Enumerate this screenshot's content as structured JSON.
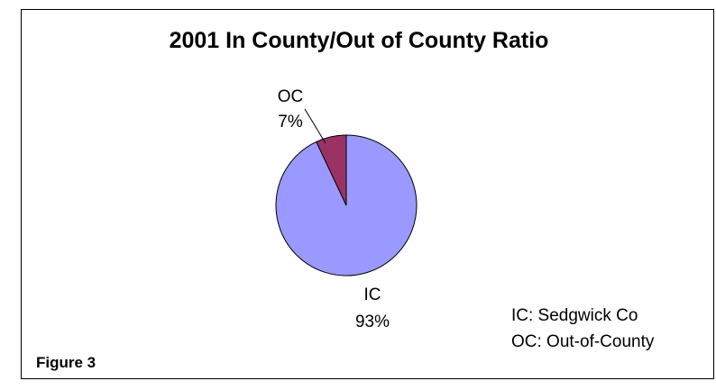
{
  "chart_data": {
    "type": "pie",
    "title": "2001 In County/Out of County Ratio",
    "slices": [
      {
        "category": "IC",
        "value": 93,
        "label": "93%",
        "color": "#9999ff"
      },
      {
        "category": "OC",
        "value": 7,
        "label": "7%",
        "color": "#993366"
      }
    ],
    "legend_notes": [
      "IC: Sedgwick Co",
      "OC: Out-of-County"
    ]
  },
  "figure_caption": "Figure 3"
}
